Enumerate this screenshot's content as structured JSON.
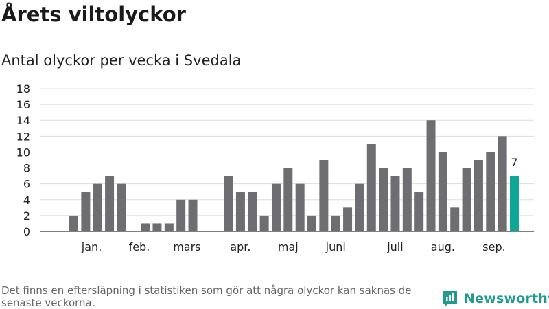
{
  "brand": {
    "name": "Newsworthy",
    "icon": "newsworthy-logo-icon",
    "color": "#1f9c8d"
  },
  "footnote": "Det finns en eftersläpning i statistiken som gör att några olyckor kan saknas de senaste veckorna.",
  "chart_data": {
    "type": "bar",
    "title": "Årets viltolyckor",
    "subtitle": "Antal olyckor per vecka i Svedala",
    "xlabel": "",
    "ylabel": "",
    "ylim": [
      0,
      18
    ],
    "yticks": [
      0,
      2,
      4,
      6,
      8,
      10,
      12,
      14,
      16,
      18
    ],
    "grid": true,
    "legend": "none",
    "week_count": 40,
    "values": [
      0,
      2,
      5,
      6,
      7,
      6,
      0,
      1,
      1,
      1,
      4,
      4,
      0,
      0,
      7,
      5,
      5,
      2,
      6,
      8,
      6,
      2,
      9,
      2,
      3,
      6,
      11,
      8,
      7,
      8,
      5,
      14,
      10,
      3,
      8,
      9,
      10,
      12,
      7
    ],
    "month_labels": [
      {
        "label": "jan.",
        "week": 2.5
      },
      {
        "label": "feb.",
        "week": 6.5
      },
      {
        "label": "mars",
        "week": 10.5
      },
      {
        "label": "apr.",
        "week": 15
      },
      {
        "label": "maj",
        "week": 19
      },
      {
        "label": "juni",
        "week": 23
      },
      {
        "label": "juli",
        "week": 28
      },
      {
        "label": "aug.",
        "week": 32
      },
      {
        "label": "sep.",
        "week": 36.3
      }
    ],
    "highlight": {
      "index": 38,
      "label": "7"
    },
    "colors": {
      "bar": "#6e6d72",
      "highlight": "#10a596",
      "grid": "#dddddd",
      "axis": "#333333",
      "text": "#222222"
    }
  }
}
